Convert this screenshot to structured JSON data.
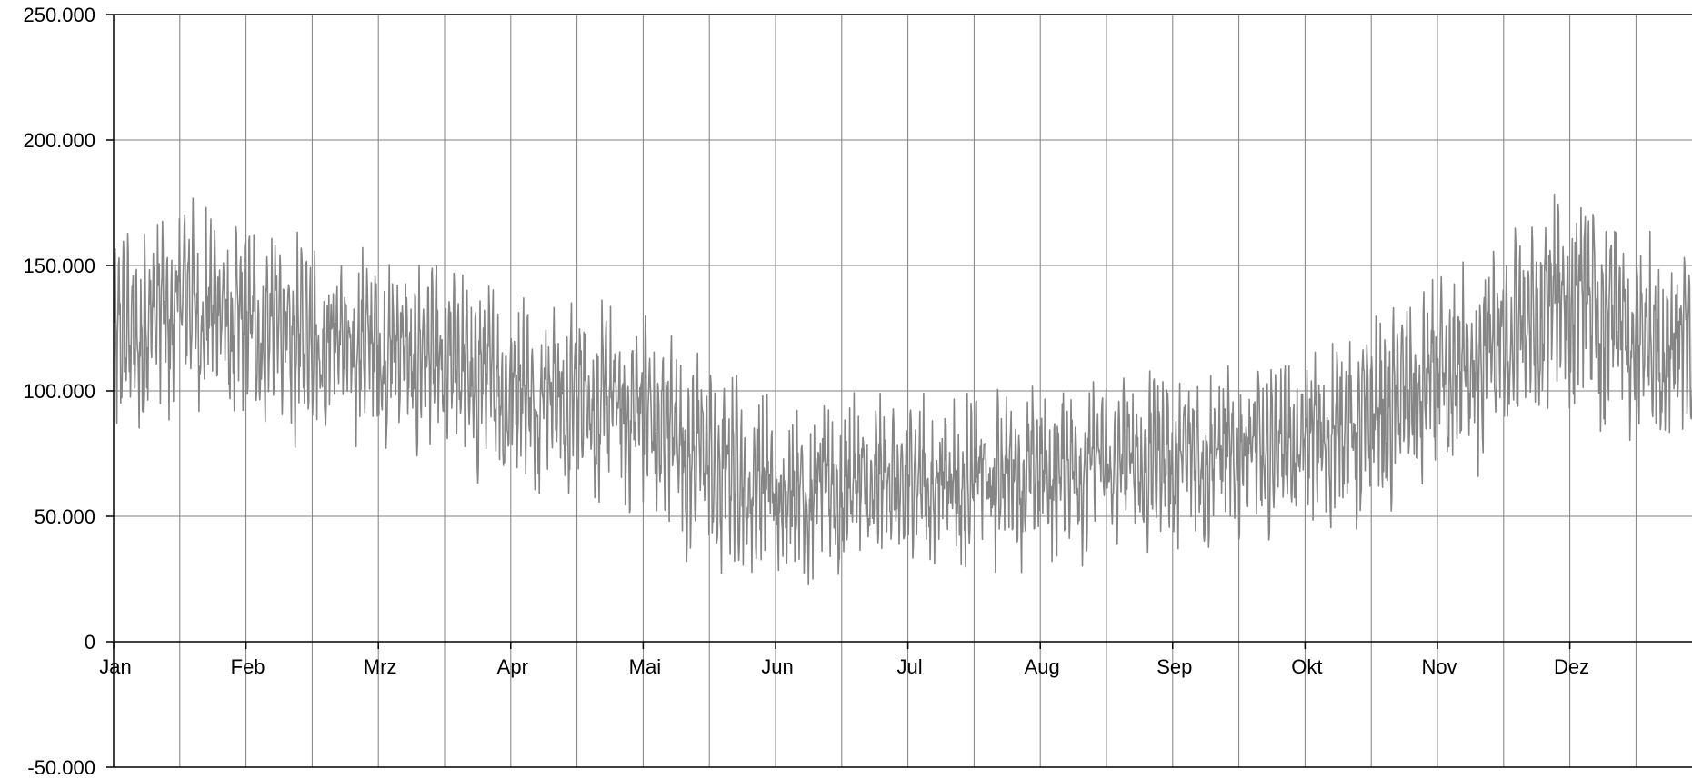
{
  "chart_data": {
    "type": "line",
    "title": "",
    "xlabel": "",
    "ylabel": "",
    "ylim": [
      -50000,
      250000
    ],
    "y_ticks": [
      {
        "value": 250000,
        "label": "250.000"
      },
      {
        "value": 200000,
        "label": "200.000"
      },
      {
        "value": 150000,
        "label": "150.000"
      },
      {
        "value": 100000,
        "label": "100.000"
      },
      {
        "value": 50000,
        "label": "50.000"
      },
      {
        "value": 0,
        "label": "0"
      },
      {
        "value": -50000,
        "label": "-50.000"
      }
    ],
    "x_ticks": [
      "Jan",
      "Feb",
      "Mrz",
      "Apr",
      "Mai",
      "Jun",
      "Jul",
      "Aug",
      "Sep",
      "Okt",
      "Nov",
      "Dez"
    ],
    "grid": true,
    "line_color": "#858585",
    "series": [
      {
        "x": [
          "Jan",
          "Jan (2. Hälfte)",
          "Feb",
          "Feb (2. Hälfte)",
          "Mrz",
          "Mrz (2. Hälfte)",
          "Apr",
          "Apr (2. Hälfte)",
          "Mai",
          "Mai (2. Hälfte)",
          "Jun",
          "Jun (2. Hälfte)",
          "Jul",
          "Jul (2. Hälfte)",
          "Aug",
          "Aug (2. Hälfte)",
          "Sep",
          "Sep (2. Hälfte)",
          "Okt",
          "Okt (2. Hälfte)",
          "Nov",
          "Nov (2. Hälfte)",
          "Dez",
          "Dez (2. Hälfte)"
        ],
        "center": [
          118000,
          138000,
          128000,
          122000,
          118000,
          112000,
          102000,
          98000,
          92000,
          72000,
          60000,
          62000,
          64000,
          66000,
          68000,
          72000,
          74000,
          76000,
          80000,
          90000,
          104000,
          118000,
          140000,
          120000
        ],
        "range": [
          38000,
          36000,
          36000,
          34000,
          34000,
          34000,
          34000,
          34000,
          36000,
          36000,
          34000,
          32000,
          30000,
          30000,
          30000,
          30000,
          30000,
          30000,
          32000,
          34000,
          36000,
          38000,
          40000,
          38000
        ]
      }
    ]
  }
}
